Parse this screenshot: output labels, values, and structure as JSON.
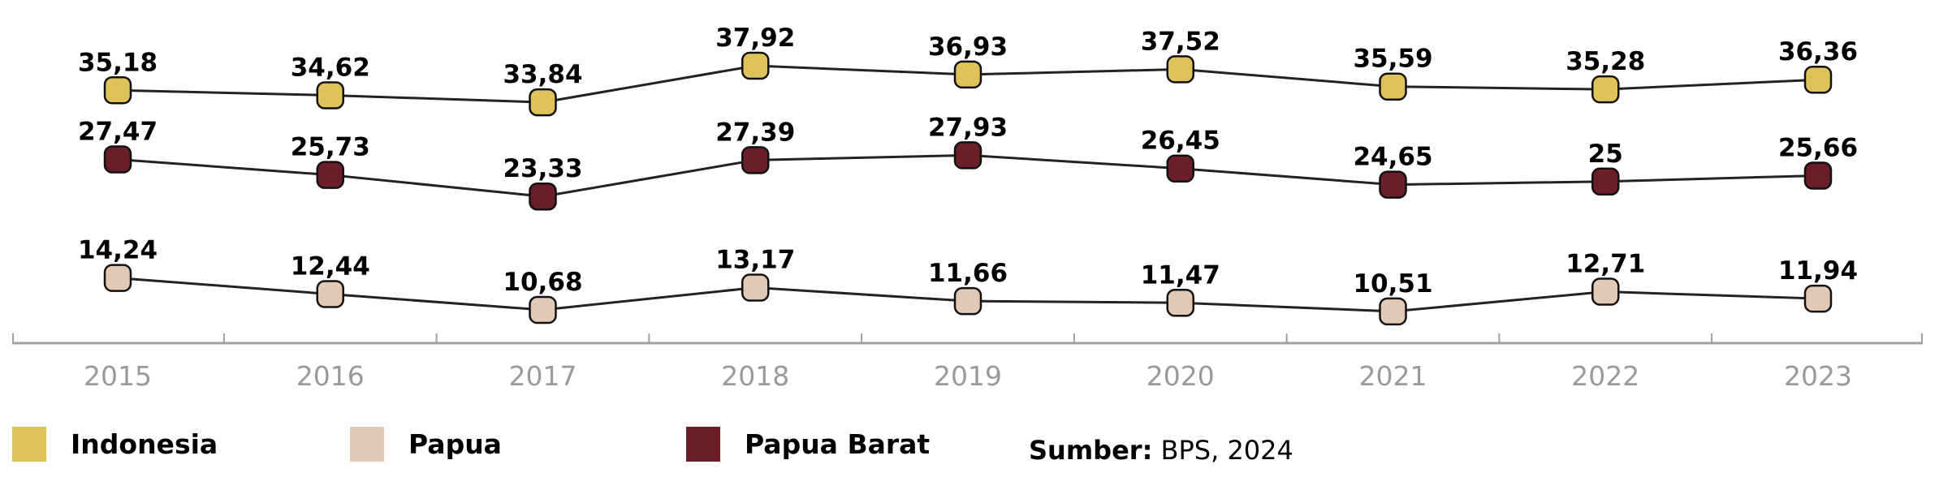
{
  "chart_data": {
    "type": "line",
    "categories": [
      "2015",
      "2016",
      "2017",
      "2018",
      "2019",
      "2020",
      "2021",
      "2022",
      "2023"
    ],
    "series": [
      {
        "name": "Indonesia",
        "color": "#dfc25a",
        "values": [
          35.18,
          34.62,
          33.84,
          37.92,
          36.93,
          37.52,
          35.59,
          35.28,
          36.36
        ],
        "labels": [
          "35,18",
          "34,62",
          "33,84",
          "37,92",
          "36,93",
          "37,52",
          "35,59",
          "35,28",
          "36,36"
        ]
      },
      {
        "name": "Papua Barat",
        "color": "#6b1e28",
        "values": [
          27.47,
          25.73,
          23.33,
          27.39,
          27.93,
          26.45,
          24.65,
          25,
          25.66
        ],
        "labels": [
          "27,47",
          "25,73",
          "23,33",
          "27,39",
          "27,93",
          "26,45",
          "24,65",
          "25",
          "25,66"
        ]
      },
      {
        "name": "Papua",
        "color": "#e2c9b5",
        "values": [
          14.24,
          12.44,
          10.68,
          13.17,
          11.66,
          11.47,
          10.51,
          12.71,
          11.94
        ],
        "labels": [
          "14,24",
          "12,44",
          "10,68",
          "13,17",
          "11,66",
          "11,47",
          "10,51",
          "12,71",
          "11,94"
        ]
      }
    ],
    "legend": [
      "Indonesia",
      "Papua",
      "Papua Barat"
    ],
    "legend_position": "bottom",
    "grid": false,
    "title": "",
    "xlabel": "",
    "ylabel": ""
  },
  "source": {
    "label": "Sumber:",
    "text": " BPS, 2024"
  }
}
